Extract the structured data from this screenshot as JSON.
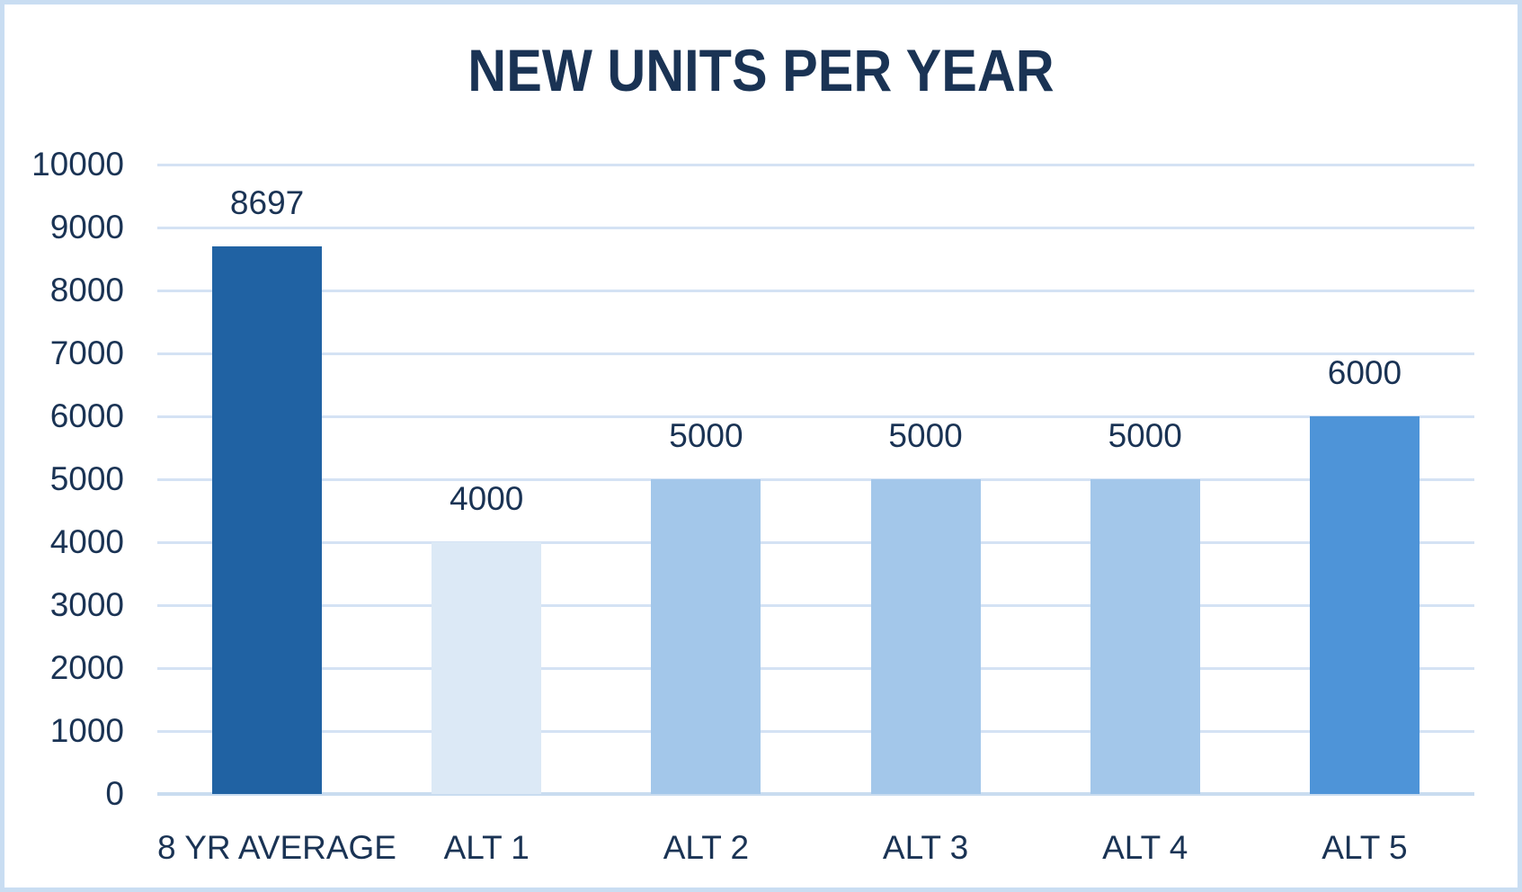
{
  "chart_data": {
    "type": "bar",
    "title": "NEW UNITS PER YEAR",
    "categories": [
      "8 YR AVERAGE",
      "ALT 1",
      "ALT 2",
      "ALT 3",
      "ALT 4",
      "ALT 5"
    ],
    "values": [
      8697,
      4000,
      5000,
      5000,
      5000,
      6000
    ],
    "data_labels": [
      "8697",
      "4000",
      "5000",
      "5000",
      "5000",
      "6000"
    ],
    "bar_colors": [
      "#2062a3",
      "#dce9f6",
      "#a3c7ea",
      "#a3c7ea",
      "#a3c7ea",
      "#4e94d8"
    ],
    "xlabel": "",
    "ylabel": "",
    "ylim": [
      0,
      10000
    ],
    "ytick_step": 1000,
    "ytick_labels": [
      "0",
      "1000",
      "2000",
      "3000",
      "4000",
      "5000",
      "6000",
      "7000",
      "8000",
      "9000",
      "10000"
    ],
    "grid": "horizontal",
    "legend": "none"
  },
  "colors": {
    "background": "#ffffff",
    "border": "#c9ddf2",
    "title_text": "#1a3354",
    "axis_text": "#1a3354",
    "gridline": "#d4e2f4",
    "baseline": "#c9dcf0"
  }
}
